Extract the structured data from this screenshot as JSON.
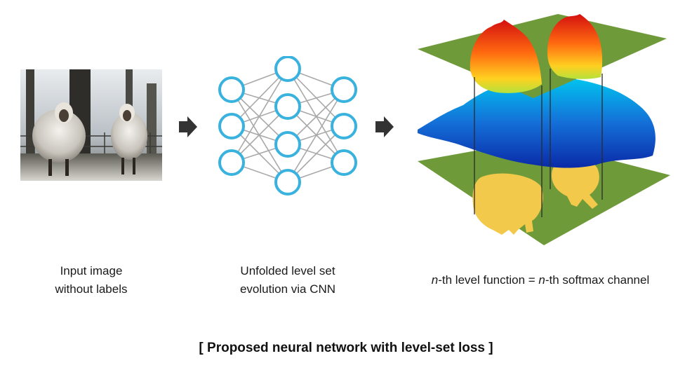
{
  "captions": {
    "input": {
      "line1": "Input image",
      "line2": "without labels"
    },
    "network": {
      "line1": "Unfolded level set",
      "line2": "evolution via CNN"
    },
    "levelset": {
      "n1": "n",
      "part1": "-th level function = ",
      "n2": "n",
      "part2": "-th softmax channel"
    }
  },
  "footer": "[ Proposed neural network with level-set loss ]",
  "colors": {
    "node_stroke": "#3ab2df",
    "edge": "#a9a9a9",
    "arrow": "#333333",
    "plane": "#6f9a3a",
    "mask": "#f2c94a"
  },
  "icons": {
    "arrow1": "arrow-right-icon",
    "arrow2": "arrow-right-icon"
  }
}
